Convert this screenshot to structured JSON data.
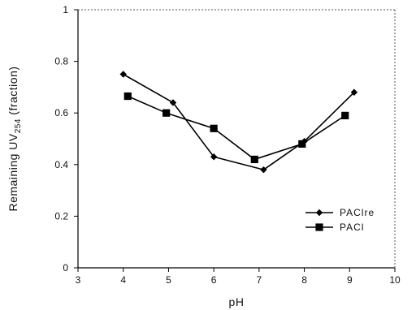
{
  "chart_data": {
    "type": "line",
    "title": "",
    "xlabel": "pH",
    "ylabel": {
      "prefix": "Remaining UV",
      "subscript": "254",
      "suffix": " (fraction)"
    },
    "xlim": [
      3,
      10
    ],
    "ylim": [
      0,
      1
    ],
    "x_ticks": [
      3,
      4,
      5,
      6,
      7,
      8,
      9,
      10
    ],
    "y_ticks": [
      0,
      0.2,
      0.4,
      0.6,
      0.8,
      1
    ],
    "x_tick_labels": [
      "3",
      "4",
      "5",
      "6",
      "7",
      "8",
      "9",
      "10"
    ],
    "y_tick_labels": [
      "0",
      "0.2",
      "0.4",
      "0.6",
      "0.8",
      "1"
    ],
    "grid": false,
    "legend_position": "lower-right",
    "series": [
      {
        "name": "PAClre",
        "marker": "diamond",
        "color": "#000000",
        "x": [
          4.0,
          5.1,
          6.0,
          7.1,
          8.0,
          9.1
        ],
        "y": [
          0.75,
          0.64,
          0.43,
          0.38,
          0.49,
          0.68
        ]
      },
      {
        "name": "PACl",
        "marker": "square",
        "color": "#000000",
        "x": [
          4.1,
          4.95,
          6.0,
          6.9,
          7.95,
          8.9
        ],
        "y": [
          0.665,
          0.6,
          0.54,
          0.42,
          0.48,
          0.59
        ]
      }
    ]
  }
}
